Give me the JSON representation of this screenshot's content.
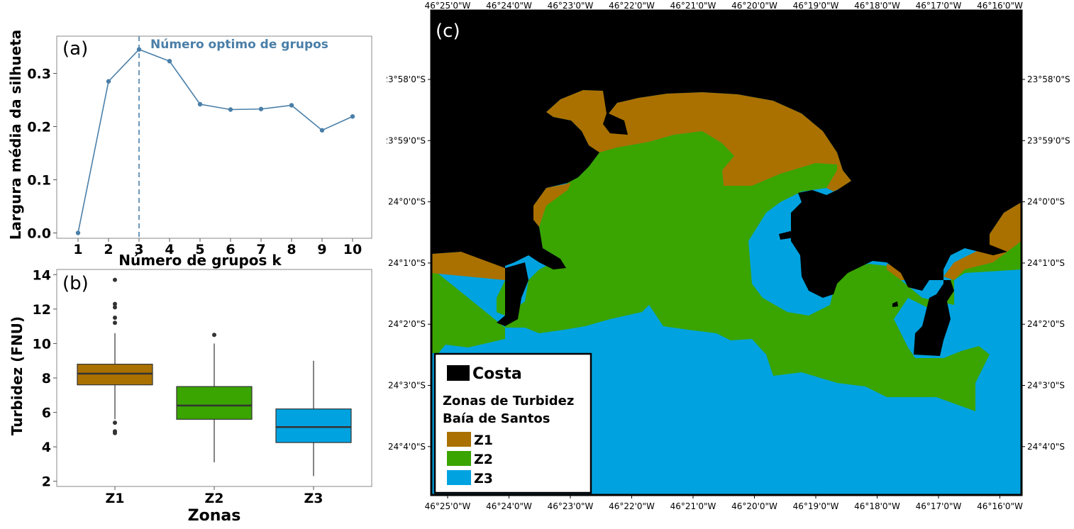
{
  "chart_data": [
    {
      "panel": "(a)",
      "type": "line",
      "x": [
        1,
        2,
        3,
        4,
        5,
        6,
        7,
        8,
        9,
        10
      ],
      "values": [
        0.0,
        0.285,
        0.345,
        0.323,
        0.242,
        0.232,
        0.233,
        0.24,
        0.193,
        0.219
      ],
      "xlabel": "Número de grupos k",
      "ylabel": "Largura média da silhueta",
      "ylim": [
        -0.01,
        0.37
      ],
      "yticks": [
        0.0,
        0.1,
        0.2,
        0.3
      ],
      "yticklabels": [
        "0.0",
        "0.1",
        "0.2",
        "0.3"
      ],
      "xticklabels": [
        "1",
        "2",
        "3",
        "4",
        "5",
        "6",
        "7",
        "8",
        "9",
        "10"
      ],
      "annotation": {
        "text": "Número optimo de grupos",
        "x": 3
      },
      "color": "#4a7fa8",
      "grid": false
    },
    {
      "panel": "(b)",
      "type": "box",
      "categories": [
        "Z1",
        "Z2",
        "Z3"
      ],
      "boxes": [
        {
          "name": "Z1",
          "whisker_low": 5.6,
          "q1": 7.6,
          "median": 8.25,
          "q3": 8.8,
          "whisker_high": 10.6,
          "outliers": [
            13.7,
            12.3,
            12.1,
            11.5,
            11.2,
            5.4,
            4.9,
            4.8
          ],
          "color": "#aa7100"
        },
        {
          "name": "Z2",
          "whisker_low": 3.1,
          "q1": 5.6,
          "median": 6.4,
          "q3": 7.5,
          "whisker_high": 10.0,
          "outliers": [
            10.5
          ],
          "color": "#3aa400"
        },
        {
          "name": "Z3",
          "whisker_low": 2.3,
          "q1": 4.25,
          "median": 5.15,
          "q3": 6.2,
          "whisker_high": 9.0,
          "outliers": [],
          "color": "#00a3e0"
        }
      ],
      "xlabel": "Zonas",
      "ylabel": "Turbidez (FNU)",
      "ylim": [
        1.7,
        14.3
      ],
      "yticks": [
        2,
        4,
        6,
        8,
        10,
        12,
        14
      ],
      "yticklabels": [
        "2",
        "4",
        "6",
        "8",
        "10",
        "12",
        "14"
      ],
      "grid": false
    },
    {
      "panel": "(c)",
      "type": "map",
      "lon_labels": [
        "46°25'0\"W",
        "46°24'0\"W",
        "46°23'0\"W",
        "46°22'0\"W",
        "46°21'0\"W",
        "46°20'0\"W",
        "46°19'0\"W",
        "46°18'0\"W",
        "46°17'0\"W",
        "46°16'0\"W"
      ],
      "lat_labels": [
        "23°58'0\"S",
        "23°59'0\"S",
        "24°0'0\"S",
        "24°1'0\"S",
        "24°2'0\"S",
        "24°3'0\"S",
        "24°4'0\"S"
      ],
      "legend": {
        "land": {
          "label": "Costa",
          "color": "#000000"
        },
        "title_lines": [
          "Zonas de Turbidez",
          "Baía de Santos"
        ],
        "items": [
          {
            "label": "Z1",
            "color": "#aa7100"
          },
          {
            "label": "Z2",
            "color": "#3aa400"
          },
          {
            "label": "Z3",
            "color": "#00a3e0"
          }
        ]
      }
    }
  ]
}
